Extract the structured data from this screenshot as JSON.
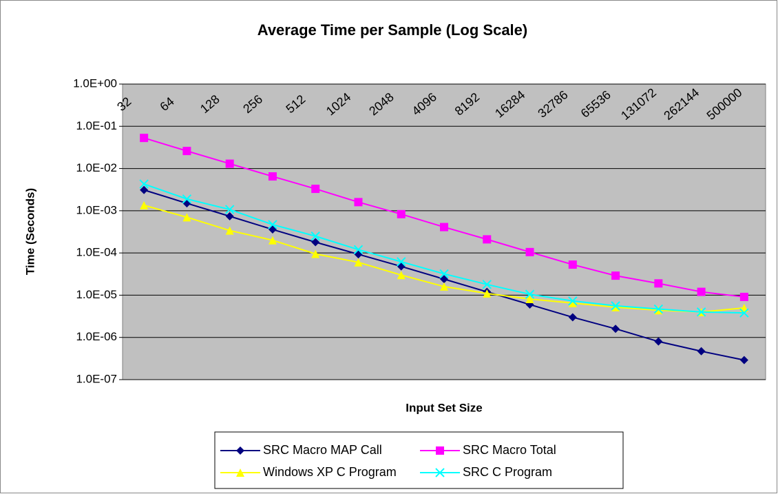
{
  "chart_data": {
    "type": "line",
    "title": "Average Time per Sample (Log Scale)",
    "x_label": "Input Set Size",
    "y_label": "Time (Seconds)",
    "categories": [
      "32",
      "64",
      "128",
      "256",
      "512",
      "1024",
      "2048",
      "4096",
      "8192",
      "16284",
      "32786",
      "65536",
      "131072",
      "262144",
      "500000"
    ],
    "series": [
      {
        "name": "SRC Macro MAP Call",
        "color": "#000080",
        "marker": "diamond",
        "values": [
          0.0031,
          0.0015,
          0.00074,
          0.00036,
          0.00018,
          9.3e-05,
          4.8e-05,
          2.4e-05,
          1.2e-05,
          6e-06,
          3e-06,
          1.6e-06,
          8e-07,
          4.7e-07,
          2.9e-07
        ]
      },
      {
        "name": "SRC Macro Total",
        "color": "#ff00ff",
        "marker": "square",
        "values": [
          0.053,
          0.026,
          0.013,
          0.0065,
          0.0033,
          0.0016,
          0.00083,
          0.00041,
          0.00021,
          0.000105,
          5.3e-05,
          2.9e-05,
          1.9e-05,
          1.2e-05,
          9.1e-06
        ]
      },
      {
        "name": "Windows XP C Program",
        "color": "#ffff00",
        "marker": "triangle",
        "values": [
          0.00135,
          0.0007,
          0.00034,
          0.0002,
          9.5e-05,
          6e-05,
          3e-05,
          1.6e-05,
          1.1e-05,
          8.1e-06,
          6.5e-06,
          5.2e-06,
          4.4e-06,
          4e-06,
          5e-06
        ]
      },
      {
        "name": "SRC C Program",
        "color": "#00ffff",
        "marker": "x",
        "values": [
          0.0043,
          0.0019,
          0.00107,
          0.00047,
          0.00025,
          0.00012,
          6.2e-05,
          3.2e-05,
          1.8e-05,
          1.05e-05,
          7.3e-06,
          5.6e-06,
          4.7e-06,
          4e-06,
          3.8e-06
        ]
      }
    ],
    "ylim": [
      1e-07,
      1
    ],
    "yticks": [
      {
        "value": 1,
        "label": "1.0E+00"
      },
      {
        "value": 0.1,
        "label": "1.0E-01"
      },
      {
        "value": 0.01,
        "label": "1.0E-02"
      },
      {
        "value": 0.001,
        "label": "1.0E-03"
      },
      {
        "value": 0.0001,
        "label": "1.0E-04"
      },
      {
        "value": 1e-05,
        "label": "1.0E-05"
      },
      {
        "value": 1e-06,
        "label": "1.0E-06"
      },
      {
        "value": 1e-07,
        "label": "1.0E-07"
      }
    ],
    "log_scale": true,
    "grid": true,
    "legend": "bottom"
  }
}
